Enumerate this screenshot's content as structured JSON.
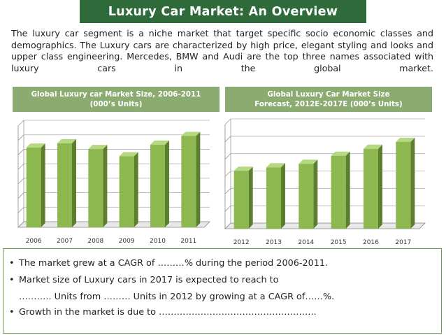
{
  "title": "Luxury Car Market: An Overview",
  "intro": "The luxury car segment is a niche market that target specific socio economic classes and demographics. The Luxury cars are characterized by high price, elegant styling and looks and upper class engineering. Mercedes, BMW and Audi are the top three names associated with luxury cars in the global market.",
  "colors": {
    "title_bg": "#2f6b3a",
    "header_bg": "#8cab71",
    "bar_face": "#8cb84f",
    "bar_side": "#5d7f2d",
    "bar_top": "#b5d882"
  },
  "chart_data": [
    {
      "type": "bar",
      "title": "Global Luxury car Market Size, 2006-2011",
      "subtitle": "(000’s Units)",
      "categories": [
        "2006",
        "2007",
        "2008",
        "2009",
        "2010",
        "2011"
      ],
      "values": [
        5.5,
        5.8,
        5.4,
        4.9,
        5.7,
        6.3
      ],
      "ylim": [
        0,
        7
      ],
      "grid": true
    },
    {
      "type": "bar",
      "title": "Global Luxury Car Market Size",
      "subtitle": "Forecast, 2012E-2017E (000’s Units)",
      "categories": [
        "2012",
        "2013",
        "2014",
        "2015",
        "2016",
        "2017"
      ],
      "values": [
        5.0,
        5.3,
        5.6,
        6.3,
        6.9,
        7.5
      ],
      "ylim": [
        0,
        9
      ],
      "grid": true
    }
  ],
  "bullets": [
    {
      "marker": "•",
      "text": "The market grew at a CAGR of ………% during the period 2006-2011."
    },
    {
      "marker": "•",
      "text": "Market size of Luxury cars in 2017 is expected to reach to"
    },
    {
      "marker": "",
      "text": "……….. Units from ……… Units in 2012 by growing at a CAGR of……%."
    },
    {
      "marker": "•",
      "text": "Growth in the market is due to …………………………………………….."
    }
  ]
}
